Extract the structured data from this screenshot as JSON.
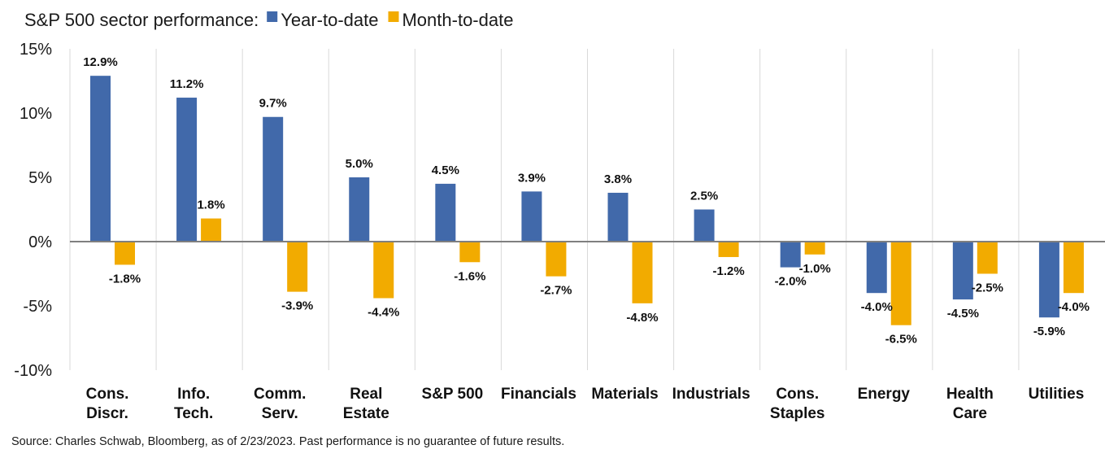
{
  "chart_data": {
    "type": "bar",
    "title": "S&P 500 sector performance:",
    "categories": [
      [
        "Cons.",
        "Discr."
      ],
      [
        "Info.",
        "Tech."
      ],
      [
        "Comm.",
        "Serv."
      ],
      [
        "Real",
        "Estate"
      ],
      [
        "S&P 500"
      ],
      [
        "Financials"
      ],
      [
        "Materials"
      ],
      [
        "Industrials"
      ],
      [
        "Cons.",
        "Staples"
      ],
      [
        "Energy"
      ],
      [
        "Health",
        "Care"
      ],
      [
        "Utilities"
      ]
    ],
    "series": [
      {
        "name": "Year-to-date",
        "color": "#4169aa",
        "values": [
          12.9,
          11.2,
          9.7,
          5.0,
          4.5,
          3.9,
          3.8,
          2.5,
          -2.0,
          -4.0,
          -4.5,
          -5.9
        ],
        "labels": [
          "12.9%",
          "11.2%",
          "9.7%",
          "5.0%",
          "4.5%",
          "3.9%",
          "3.8%",
          "2.5%",
          "-2.0%",
          "-4.0%",
          "-4.5%",
          "-5.9%"
        ]
      },
      {
        "name": "Month-to-date",
        "color": "#f2ab00",
        "values": [
          -1.8,
          1.8,
          -3.9,
          -4.4,
          -1.6,
          -2.7,
          -4.8,
          -1.2,
          -1.0,
          -6.5,
          -2.5,
          -4.0
        ],
        "labels": [
          "-1.8%",
          "1.8%",
          "-3.9%",
          "-4.4%",
          "-1.6%",
          "-2.7%",
          "-4.8%",
          "-1.2%",
          "-1.0%",
          "-6.5%",
          "-2.5%",
          "-4.0%"
        ]
      }
    ],
    "ylim": [
      -10,
      15
    ],
    "yticks": [
      15,
      10,
      5,
      0,
      -5,
      -10
    ],
    "ytick_labels": [
      "15%",
      "10%",
      "5%",
      "0%",
      "-5%",
      "-10%"
    ],
    "legend_position": "top",
    "category_separators": true,
    "grid": false
  },
  "source_note": "Source: Charles Schwab, Bloomberg, as of 2/23/2023. Past performance is no guarantee of future results."
}
